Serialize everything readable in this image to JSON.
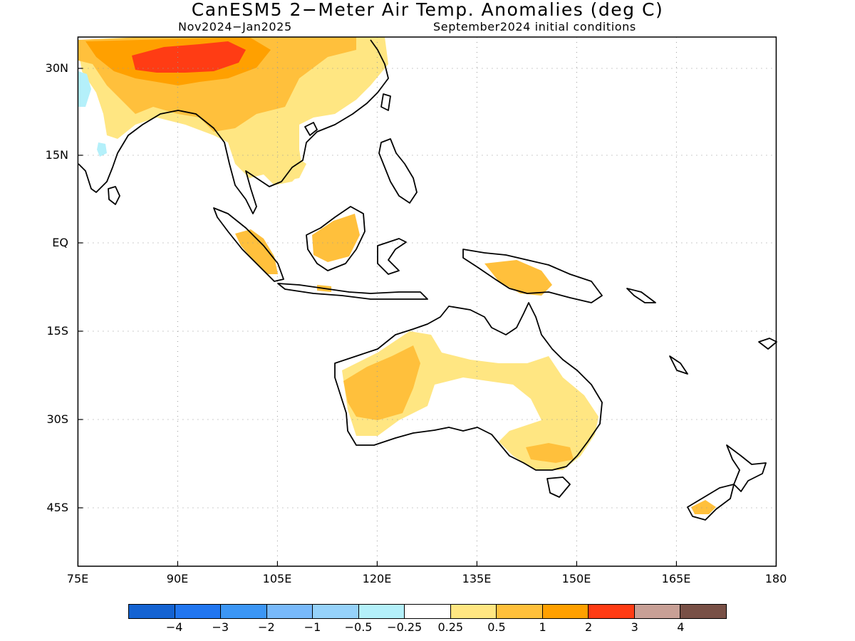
{
  "header": {
    "title": "CanESM5 2−Meter Air Temp. Anomalies (deg C)",
    "period": "Nov2024−Jan2025",
    "init": "September2024 initial conditions"
  },
  "axes": {
    "lon_ticks": [
      "75E",
      "90E",
      "105E",
      "120E",
      "135E",
      "150E",
      "165E",
      "180"
    ],
    "lat_ticks": [
      "30N",
      "15N",
      "EQ",
      "15S",
      "30S",
      "45S"
    ]
  },
  "map": {
    "lon_range": [
      75,
      180
    ],
    "lat_range": [
      -55,
      35
    ],
    "grid": "dotted"
  },
  "legend": {
    "colors": [
      "#1463d2",
      "#2176f0",
      "#3c96f5",
      "#78b9fa",
      "#96d2fa",
      "#b4f0fa",
      "#ffffff",
      "#ffe682",
      "#ffc03c",
      "#ffa000",
      "#ff3c14",
      "#c8a096",
      "#785046"
    ],
    "labels": [
      "−4",
      "−3",
      "−2",
      "−1",
      "−0.5",
      "−0.25",
      "0.25",
      "0.5",
      "1",
      "2",
      "3",
      "4"
    ]
  }
}
